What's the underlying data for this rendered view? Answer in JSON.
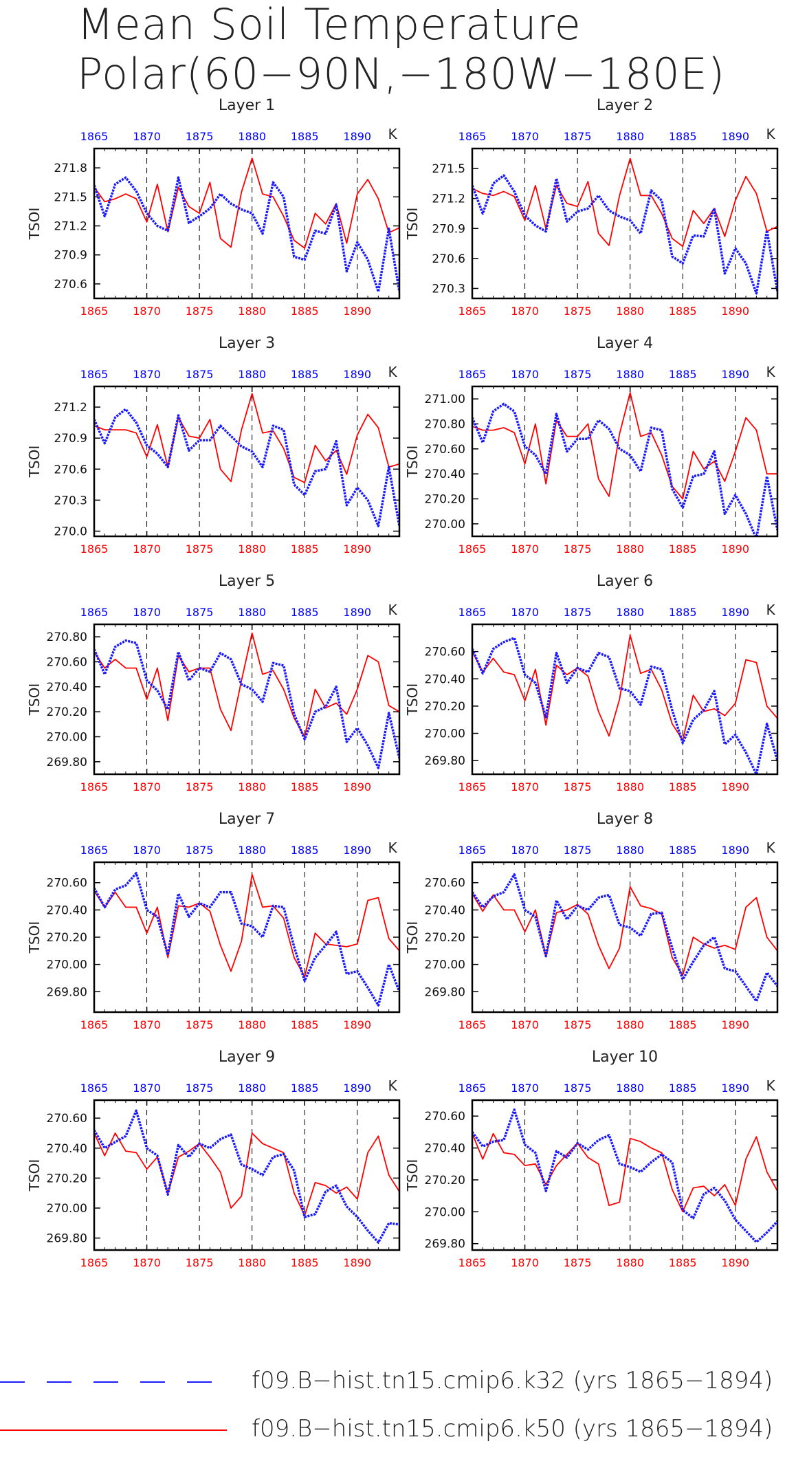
{
  "title_lines": [
    "Mean Soil Temperature",
    "Polar(60−90N,−180W−180E)"
  ],
  "colors": {
    "k32": "#1a1aff",
    "k50": "#ff0000",
    "axis": "#000000",
    "top_ticks": "#0000ff",
    "bottom_ticks": "#ff0000"
  },
  "legend": [
    {
      "label": "f09.B−hist.tn15.cmip6.k32 (yrs 1865−1894)",
      "color": "#1a1aff",
      "style": "dashed"
    },
    {
      "label": "f09.B−hist.tn15.cmip6.k50 (yrs 1865−1894)",
      "color": "#ff0000",
      "style": "solid"
    }
  ],
  "chart_data": [
    {
      "type": "line",
      "title": "Layer 1",
      "ylabel": "TSOI",
      "unit": "K",
      "xlim": [
        1865,
        1894
      ],
      "ylim": [
        270.45,
        272.0
      ],
      "xticks": [
        1865,
        1870,
        1875,
        1880,
        1885,
        1890
      ],
      "yticks": [
        270.6,
        270.9,
        271.2,
        271.5,
        271.8
      ],
      "ytick_decimals": 1,
      "x_start": 1865,
      "series": [
        {
          "name": "f09.B−hist.tn15.cmip6.k32",
          "axis": "top",
          "values": [
            271.62,
            271.3,
            271.63,
            271.7,
            271.56,
            271.33,
            271.2,
            271.15,
            271.7,
            271.23,
            271.3,
            271.38,
            271.53,
            271.43,
            271.37,
            271.33,
            271.12,
            271.65,
            271.5,
            270.88,
            270.85,
            271.15,
            271.12,
            271.42,
            270.73,
            271.03,
            270.85,
            270.52,
            271.17,
            270.52
          ]
        },
        {
          "name": "f09.B−hist.tn15.cmip6.k50",
          "axis": "bottom",
          "values": [
            271.6,
            271.45,
            271.48,
            271.53,
            271.48,
            271.24,
            271.63,
            271.14,
            271.6,
            271.4,
            271.33,
            271.65,
            271.07,
            270.98,
            271.55,
            271.9,
            271.53,
            271.5,
            271.3,
            271.05,
            270.97,
            271.33,
            271.22,
            271.43,
            271.02,
            271.53,
            271.68,
            271.48,
            271.13,
            271.18
          ]
        }
      ]
    },
    {
      "type": "line",
      "title": "Layer 2",
      "ylabel": "TSOI",
      "unit": "K",
      "xlim": [
        1865,
        1894
      ],
      "ylim": [
        270.2,
        271.7
      ],
      "xticks": [
        1865,
        1870,
        1875,
        1880,
        1885,
        1890
      ],
      "yticks": [
        270.3,
        270.6,
        270.9,
        271.2,
        271.5
      ],
      "ytick_decimals": 1,
      "x_start": 1865,
      "series": [
        {
          "name": "f09.B−hist.tn15.cmip6.k32",
          "axis": "top",
          "values": [
            271.33,
            271.05,
            271.35,
            271.43,
            271.27,
            271.03,
            270.93,
            270.87,
            271.4,
            270.97,
            271.07,
            271.1,
            271.23,
            271.08,
            271.02,
            270.98,
            270.85,
            271.28,
            271.18,
            270.62,
            270.55,
            270.83,
            270.82,
            271.1,
            270.45,
            270.7,
            270.55,
            270.25,
            270.88,
            270.27
          ]
        },
        {
          "name": "f09.B−hist.tn15.cmip6.k50",
          "axis": "bottom",
          "values": [
            271.3,
            271.25,
            271.23,
            271.27,
            271.22,
            270.98,
            271.33,
            270.9,
            271.33,
            271.15,
            271.12,
            271.37,
            270.85,
            270.73,
            271.23,
            271.6,
            271.23,
            271.23,
            271.05,
            270.8,
            270.72,
            271.08,
            270.95,
            271.1,
            270.82,
            271.18,
            271.42,
            271.25,
            270.87,
            270.92
          ]
        }
      ]
    },
    {
      "type": "line",
      "title": "Layer 3",
      "ylabel": "TSOI",
      "unit": "K",
      "xlim": [
        1865,
        1894
      ],
      "ylim": [
        269.95,
        271.4
      ],
      "xticks": [
        1865,
        1870,
        1875,
        1880,
        1885,
        1890
      ],
      "yticks": [
        270.0,
        270.3,
        270.6,
        270.9,
        271.2
      ],
      "ytick_decimals": 1,
      "x_start": 1865,
      "series": [
        {
          "name": "f09.B−hist.tn15.cmip6.k32",
          "axis": "top",
          "values": [
            271.08,
            270.85,
            271.1,
            271.18,
            271.05,
            270.83,
            270.75,
            270.62,
            271.12,
            270.78,
            270.88,
            270.88,
            271.02,
            270.92,
            270.82,
            270.77,
            270.62,
            271.02,
            270.98,
            270.45,
            270.35,
            270.58,
            270.6,
            270.87,
            270.25,
            270.42,
            270.3,
            270.05,
            270.62,
            270.05
          ]
        },
        {
          "name": "f09.B−hist.tn15.cmip6.k50",
          "axis": "bottom",
          "values": [
            271.02,
            270.98,
            270.98,
            270.98,
            270.95,
            270.72,
            271.03,
            270.62,
            271.1,
            270.92,
            270.9,
            271.08,
            270.6,
            270.48,
            270.98,
            271.33,
            270.95,
            270.97,
            270.8,
            270.52,
            270.47,
            270.83,
            270.68,
            270.78,
            270.55,
            270.93,
            271.13,
            271.0,
            270.62,
            270.65
          ]
        }
      ]
    },
    {
      "type": "line",
      "title": "Layer 4",
      "ylabel": "TSOI",
      "unit": "K",
      "xlim": [
        1865,
        1894
      ],
      "ylim": [
        269.9,
        271.1
      ],
      "xticks": [
        1865,
        1870,
        1875,
        1880,
        1885,
        1890
      ],
      "yticks": [
        270.0,
        270.2,
        270.4,
        270.6,
        270.8,
        271.0
      ],
      "ytick_decimals": 2,
      "x_start": 1865,
      "series": [
        {
          "name": "f09.B−hist.tn15.cmip6.k32",
          "axis": "top",
          "values": [
            270.85,
            270.65,
            270.9,
            270.96,
            270.9,
            270.62,
            270.55,
            270.4,
            270.88,
            270.58,
            270.68,
            270.68,
            270.83,
            270.76,
            270.6,
            270.55,
            270.42,
            270.77,
            270.75,
            270.28,
            270.13,
            270.38,
            270.4,
            270.58,
            270.08,
            270.23,
            270.08,
            269.88,
            270.38,
            269.95
          ]
        },
        {
          "name": "f09.B−hist.tn15.cmip6.k50",
          "axis": "bottom",
          "values": [
            270.78,
            270.75,
            270.75,
            270.77,
            270.73,
            270.48,
            270.8,
            270.32,
            270.83,
            270.7,
            270.7,
            270.8,
            270.36,
            270.22,
            270.72,
            271.05,
            270.7,
            270.73,
            270.55,
            270.3,
            270.2,
            270.58,
            270.44,
            270.5,
            270.34,
            270.58,
            270.85,
            270.75,
            270.4,
            270.4
          ]
        }
      ]
    },
    {
      "type": "line",
      "title": "Layer 5",
      "ylabel": "TSOI",
      "unit": "K",
      "xlim": [
        1865,
        1894
      ],
      "ylim": [
        269.7,
        270.9
      ],
      "xticks": [
        1865,
        1870,
        1875,
        1880,
        1885,
        1890
      ],
      "yticks": [
        269.8,
        270.0,
        270.2,
        270.4,
        270.6,
        270.8
      ],
      "ytick_decimals": 2,
      "x_start": 1865,
      "series": [
        {
          "name": "f09.B−hist.tn15.cmip6.k32",
          "axis": "top",
          "values": [
            270.7,
            270.5,
            270.72,
            270.77,
            270.75,
            270.45,
            270.37,
            270.22,
            270.68,
            270.45,
            270.55,
            270.52,
            270.67,
            270.62,
            270.42,
            270.38,
            270.28,
            270.59,
            270.57,
            270.18,
            269.98,
            270.2,
            270.24,
            270.4,
            269.96,
            270.07,
            269.93,
            269.75,
            270.19,
            269.83
          ]
        },
        {
          "name": "f09.B−hist.tn15.cmip6.k50",
          "axis": "bottom",
          "values": [
            270.68,
            270.55,
            270.62,
            270.55,
            270.55,
            270.3,
            270.55,
            270.13,
            270.65,
            270.52,
            270.55,
            270.55,
            270.22,
            270.05,
            270.45,
            270.83,
            270.5,
            270.53,
            270.38,
            270.15,
            270.0,
            270.38,
            270.23,
            270.27,
            270.18,
            270.38,
            270.65,
            270.6,
            270.25,
            270.2
          ]
        }
      ]
    },
    {
      "type": "line",
      "title": "Layer 6",
      "ylabel": "TSOI",
      "unit": "K",
      "xlim": [
        1865,
        1894
      ],
      "ylim": [
        269.7,
        270.8
      ],
      "xticks": [
        1865,
        1870,
        1875,
        1880,
        1885,
        1890
      ],
      "yticks": [
        269.8,
        270.0,
        270.2,
        270.4,
        270.6
      ],
      "ytick_decimals": 2,
      "x_start": 1865,
      "series": [
        {
          "name": "f09.B−hist.tn15.cmip6.k32",
          "axis": "top",
          "values": [
            270.62,
            270.44,
            270.62,
            270.67,
            270.7,
            270.43,
            270.37,
            270.12,
            270.59,
            270.37,
            270.48,
            270.45,
            270.59,
            270.56,
            270.33,
            270.31,
            270.21,
            270.49,
            270.47,
            270.17,
            269.93,
            270.1,
            270.17,
            270.31,
            269.92,
            269.99,
            269.86,
            269.7,
            270.07,
            269.8
          ]
        },
        {
          "name": "f09.B−hist.tn15.cmip6.k50",
          "axis": "bottom",
          "values": [
            270.6,
            270.45,
            270.55,
            270.45,
            270.43,
            270.24,
            270.47,
            270.06,
            270.5,
            270.43,
            270.48,
            270.42,
            270.16,
            269.98,
            270.25,
            270.72,
            270.44,
            270.47,
            270.32,
            270.07,
            269.95,
            270.28,
            270.16,
            270.18,
            270.13,
            270.22,
            270.54,
            270.52,
            270.2,
            270.11
          ]
        }
      ]
    },
    {
      "type": "line",
      "title": "Layer 7",
      "ylabel": "TSOI",
      "unit": "K",
      "xlim": [
        1865,
        1894
      ],
      "ylim": [
        269.65,
        270.75
      ],
      "xticks": [
        1865,
        1870,
        1875,
        1880,
        1885,
        1890
      ],
      "yticks": [
        269.8,
        270.0,
        270.2,
        270.4,
        270.6
      ],
      "ytick_decimals": 2,
      "x_start": 1865,
      "series": [
        {
          "name": "f09.B−hist.tn15.cmip6.k32",
          "axis": "top",
          "values": [
            270.56,
            270.42,
            270.55,
            270.58,
            270.67,
            270.4,
            270.35,
            270.07,
            270.52,
            270.35,
            270.45,
            270.42,
            270.53,
            270.53,
            270.3,
            270.28,
            270.2,
            270.43,
            270.42,
            270.13,
            269.88,
            270.05,
            270.14,
            270.24,
            269.93,
            269.95,
            269.83,
            269.7,
            270.0,
            269.8
          ]
        },
        {
          "name": "f09.B−hist.tn15.cmip6.k50",
          "axis": "bottom",
          "values": [
            270.54,
            270.42,
            270.53,
            270.42,
            270.42,
            270.23,
            270.42,
            270.05,
            270.43,
            270.42,
            270.45,
            270.39,
            270.14,
            269.95,
            270.17,
            270.66,
            270.42,
            270.43,
            270.34,
            270.05,
            269.91,
            270.23,
            270.15,
            270.14,
            270.13,
            270.15,
            270.47,
            270.49,
            270.19,
            270.1
          ]
        }
      ]
    },
    {
      "type": "line",
      "title": "Layer 8",
      "ylabel": "TSOI",
      "unit": "K",
      "xlim": [
        1865,
        1894
      ],
      "ylim": [
        269.65,
        270.75
      ],
      "xticks": [
        1865,
        1870,
        1875,
        1880,
        1885,
        1890
      ],
      "yticks": [
        269.8,
        270.0,
        270.2,
        270.4,
        270.6
      ],
      "ytick_decimals": 2,
      "x_start": 1865,
      "series": [
        {
          "name": "f09.B−hist.tn15.cmip6.k32",
          "axis": "top",
          "values": [
            270.53,
            270.42,
            270.5,
            270.53,
            270.66,
            270.4,
            270.35,
            270.06,
            270.47,
            270.33,
            270.43,
            270.4,
            270.49,
            270.51,
            270.29,
            270.27,
            270.21,
            270.37,
            270.38,
            270.12,
            269.89,
            270.02,
            270.14,
            270.2,
            269.97,
            269.95,
            269.84,
            269.73,
            269.94,
            269.84
          ]
        },
        {
          "name": "f09.B−hist.tn15.cmip6.k50",
          "axis": "bottom",
          "values": [
            270.52,
            270.39,
            270.51,
            270.4,
            270.4,
            270.24,
            270.4,
            270.06,
            270.38,
            270.4,
            270.44,
            270.37,
            270.14,
            269.97,
            270.12,
            270.57,
            270.43,
            270.41,
            270.37,
            270.05,
            269.92,
            270.2,
            270.15,
            270.12,
            270.14,
            270.11,
            270.42,
            270.49,
            270.2,
            270.1
          ]
        }
      ]
    },
    {
      "type": "line",
      "title": "Layer 9",
      "ylabel": "TSOI",
      "unit": "K",
      "xlim": [
        1865,
        1894
      ],
      "ylim": [
        269.72,
        270.72
      ],
      "xticks": [
        1865,
        1870,
        1875,
        1880,
        1885,
        1890
      ],
      "yticks": [
        269.8,
        270.0,
        270.2,
        270.4,
        270.6
      ],
      "ytick_decimals": 2,
      "x_start": 1865,
      "series": [
        {
          "name": "f09.B−hist.tn15.cmip6.k32",
          "axis": "top",
          "values": [
            270.52,
            270.4,
            270.44,
            270.48,
            270.65,
            270.4,
            270.35,
            270.09,
            270.42,
            270.34,
            270.43,
            270.4,
            270.46,
            270.49,
            270.29,
            270.26,
            270.22,
            270.34,
            270.36,
            270.25,
            269.94,
            269.96,
            270.11,
            270.15,
            270.01,
            269.94,
            269.85,
            269.77,
            269.9,
            269.89
          ]
        },
        {
          "name": "f09.B−hist.tn15.cmip6.k50",
          "axis": "bottom",
          "values": [
            270.5,
            270.35,
            270.5,
            270.38,
            270.37,
            270.26,
            270.34,
            270.1,
            270.34,
            270.38,
            270.43,
            270.34,
            270.24,
            270.0,
            270.08,
            270.5,
            270.43,
            270.4,
            270.37,
            270.1,
            269.95,
            270.17,
            270.15,
            270.1,
            270.14,
            270.06,
            270.37,
            270.48,
            270.22,
            270.11
          ]
        }
      ]
    },
    {
      "type": "line",
      "title": "Layer 10",
      "ylabel": "TSOI",
      "unit": "K",
      "xlim": [
        1865,
        1894
      ],
      "ylim": [
        269.76,
        270.7
      ],
      "xticks": [
        1865,
        1870,
        1875,
        1880,
        1885,
        1890
      ],
      "yticks": [
        269.8,
        270.0,
        270.2,
        270.4,
        270.6
      ],
      "ytick_decimals": 2,
      "x_start": 1865,
      "series": [
        {
          "name": "f09.B−hist.tn15.cmip6.k32",
          "axis": "top",
          "values": [
            270.5,
            270.41,
            270.44,
            270.45,
            270.64,
            270.42,
            270.37,
            270.13,
            270.38,
            270.34,
            270.43,
            270.39,
            270.45,
            270.48,
            270.3,
            270.28,
            270.25,
            270.31,
            270.36,
            270.31,
            270.01,
            269.96,
            270.11,
            270.15,
            270.07,
            269.95,
            269.88,
            269.81,
            269.87,
            269.94
          ]
        },
        {
          "name": "f09.B−hist.tn15.cmip6.k50",
          "axis": "bottom",
          "values": [
            270.49,
            270.33,
            270.49,
            270.37,
            270.36,
            270.29,
            270.3,
            270.17,
            270.29,
            270.36,
            270.43,
            270.34,
            270.3,
            270.04,
            270.06,
            270.46,
            270.44,
            270.4,
            270.37,
            270.14,
            270.0,
            270.15,
            270.16,
            270.1,
            270.17,
            270.04,
            270.33,
            270.47,
            270.25,
            270.13
          ]
        }
      ]
    }
  ]
}
